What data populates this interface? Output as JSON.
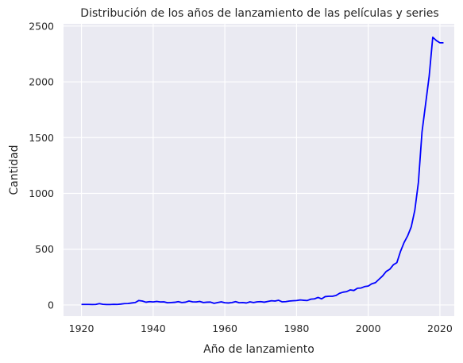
{
  "chart_data": {
    "type": "line",
    "title": "Distribución de los años de lanzamiento de las películas y series",
    "xlabel": "Año de lanzamiento",
    "ylabel": "Cantidad",
    "xlim": [
      1915,
      2024
    ],
    "ylim": [
      -100,
      2520
    ],
    "x_ticks": [
      1920,
      1940,
      1960,
      1980,
      2000,
      2020
    ],
    "y_ticks": [
      0,
      500,
      1000,
      1500,
      2000,
      2500
    ],
    "grid": true,
    "line_color": "#0000ff",
    "plot_background": "#eaeaf2",
    "series": [
      {
        "x": [
          1920,
          1921,
          1922,
          1923,
          1924,
          1925,
          1926,
          1927,
          1928,
          1929,
          1930,
          1931,
          1932,
          1933,
          1934,
          1935,
          1936,
          1937,
          1938,
          1939,
          1940,
          1941,
          1942,
          1943,
          1944,
          1945,
          1946,
          1947,
          1948,
          1949,
          1950,
          1951,
          1952,
          1953,
          1954,
          1955,
          1956,
          1957,
          1958,
          1959,
          1960,
          1961,
          1962,
          1963,
          1964,
          1965,
          1966,
          1967,
          1968,
          1969,
          1970,
          1971,
          1972,
          1973,
          1974,
          1975,
          1976,
          1977,
          1978,
          1979,
          1980,
          1981,
          1982,
          1983,
          1984,
          1985,
          1986,
          1987,
          1988,
          1989,
          1990,
          1991,
          1992,
          1993,
          1994,
          1995,
          1996,
          1997,
          1998,
          1999,
          2000,
          2001,
          2002,
          2003,
          2004,
          2005,
          2006,
          2007,
          2008,
          2009,
          2010,
          2011,
          2012,
          2013,
          2014,
          2015,
          2016,
          2017,
          2018,
          2019,
          2020,
          2021
        ],
        "values": [
          5,
          5,
          5,
          4,
          5,
          12,
          6,
          4,
          4,
          6,
          5,
          8,
          12,
          13,
          18,
          22,
          40,
          35,
          25,
          30,
          27,
          32,
          27,
          28,
          20,
          22,
          24,
          30,
          22,
          25,
          35,
          28,
          27,
          32,
          22,
          25,
          26,
          15,
          22,
          28,
          20,
          18,
          22,
          30,
          20,
          22,
          18,
          28,
          22,
          28,
          30,
          25,
          32,
          38,
          35,
          42,
          28,
          30,
          35,
          38,
          40,
          45,
          42,
          40,
          52,
          55,
          68,
          55,
          75,
          78,
          78,
          85,
          105,
          115,
          120,
          135,
          130,
          150,
          152,
          165,
          170,
          190,
          200,
          230,
          260,
          300,
          320,
          360,
          380,
          480,
          560,
          620,
          700,
          850,
          1100,
          1550,
          1800,
          2050,
          2400,
          2370,
          2350,
          2350
        ]
      }
    ]
  }
}
